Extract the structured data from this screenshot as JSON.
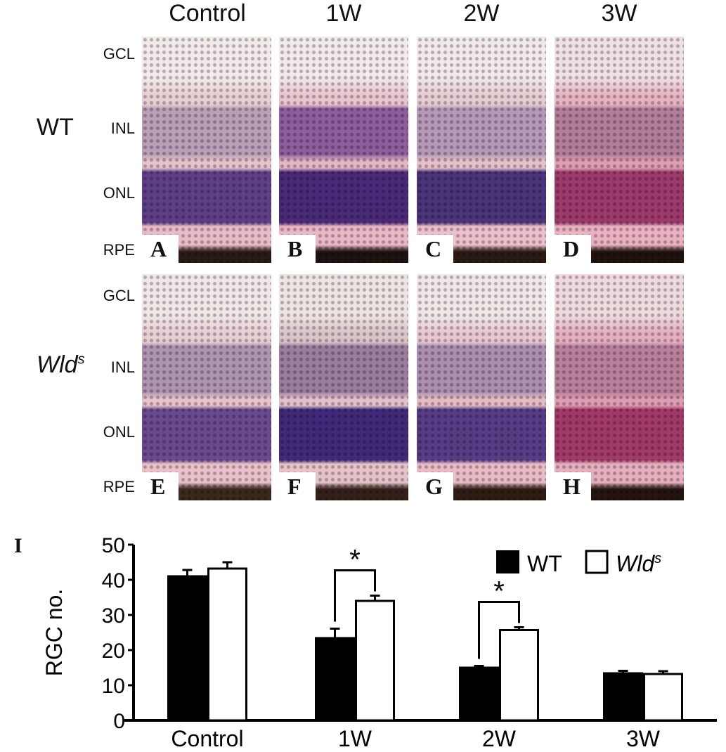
{
  "columns": [
    "Control",
    "1W",
    "2W",
    "3W"
  ],
  "rows": [
    {
      "label": "WT",
      "italic": false
    },
    {
      "label": "Wld",
      "superscript": "s",
      "italic": true
    }
  ],
  "layers": [
    "GCL",
    "INL",
    "ONL",
    "RPE"
  ],
  "panel_labels": [
    "A",
    "B",
    "C",
    "D",
    "E",
    "F",
    "G",
    "H"
  ],
  "chart_label": "I",
  "chart_data": {
    "type": "bar",
    "categories": [
      "Control",
      "1W",
      "2W",
      "3W"
    ],
    "ylabel": "RGC no.",
    "ylim": [
      0,
      50
    ],
    "yticks": [
      "0",
      "10",
      "20",
      "30",
      "40",
      "50"
    ],
    "legend_position": "top-right",
    "series": [
      {
        "name": "WT",
        "color": "#000000",
        "values": [
          41.0,
          23.4,
          15.0,
          13.4
        ],
        "errors": [
          1.8,
          2.7,
          0.5,
          0.7
        ]
      },
      {
        "name": "Wld",
        "name_superscript": "s",
        "color": "#ffffff",
        "values": [
          43.2,
          34.0,
          25.7,
          13.2
        ],
        "errors": [
          1.8,
          1.5,
          0.8,
          0.8
        ]
      }
    ],
    "significance": [
      {
        "category": "1W",
        "marker": "*"
      },
      {
        "category": "2W",
        "marker": "*"
      }
    ]
  }
}
